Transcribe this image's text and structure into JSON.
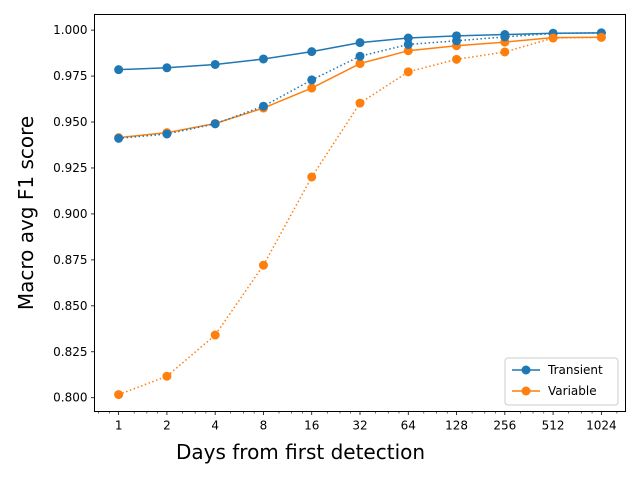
{
  "chart_data": {
    "type": "line",
    "xscale": "log2",
    "x": [
      1,
      2,
      4,
      8,
      16,
      32,
      64,
      128,
      256,
      512,
      1024
    ],
    "xticks": [
      "1",
      "2",
      "4",
      "8",
      "16",
      "32",
      "64",
      "128",
      "256",
      "512",
      "1024"
    ],
    "xlabel": "Days from first detection",
    "ylabel": "Macro avg F1 score",
    "ylim": [
      0.7925,
      1.0085
    ],
    "yticks": [
      "0.800",
      "0.825",
      "0.850",
      "0.875",
      "0.900",
      "0.925",
      "0.950",
      "0.975",
      "1.000"
    ],
    "ytick_values": [
      0.8,
      0.825,
      0.85,
      0.875,
      0.9,
      0.925,
      0.95,
      0.975,
      1.0
    ],
    "grid": false,
    "legend_position": "lower-right",
    "series": [
      {
        "name": "Transient",
        "style": "solid",
        "color": "#1f77b4",
        "values": [
          0.9785,
          0.9795,
          0.9813,
          0.9843,
          0.9883,
          0.9932,
          0.9957,
          0.9969,
          0.9976,
          0.9983,
          0.9985
        ]
      },
      {
        "name": "Variable",
        "style": "solid",
        "color": "#ff7f0e",
        "values": [
          0.9415,
          0.9442,
          0.9492,
          0.9576,
          0.9685,
          0.9818,
          0.9888,
          0.9915,
          0.9935,
          0.9959,
          0.9961
        ]
      },
      {
        "style": "dotted",
        "color": "#1f77b4",
        "values": [
          0.9411,
          0.9435,
          0.949,
          0.9586,
          0.9729,
          0.9858,
          0.9922,
          0.9942,
          0.9963,
          0.9982,
          0.9985
        ]
      },
      {
        "style": "dotted",
        "color": "#ff7f0e",
        "values": [
          0.8017,
          0.8117,
          0.8341,
          0.8721,
          0.9201,
          0.9603,
          0.9773,
          0.9841,
          0.9881,
          0.9957,
          0.9961
        ]
      }
    ]
  }
}
